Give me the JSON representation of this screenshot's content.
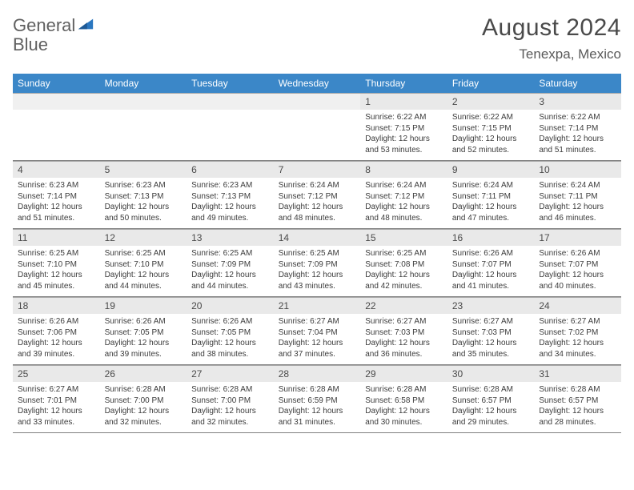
{
  "logo": {
    "text1": "General",
    "text2": "Blue"
  },
  "title": "August 2024",
  "subtitle": "Tenexpa, Mexico",
  "colors": {
    "header_bg": "#3b87c8",
    "header_text": "#ffffff",
    "daynum_bg": "#e9e9e9",
    "border": "#808080",
    "logo_blue": "#2b77c0"
  },
  "weekdays": [
    "Sunday",
    "Monday",
    "Tuesday",
    "Wednesday",
    "Thursday",
    "Friday",
    "Saturday"
  ],
  "weeks": [
    [
      null,
      null,
      null,
      null,
      {
        "n": "1",
        "sr": "6:22 AM",
        "ss": "7:15 PM",
        "dl": "12 hours and 53 minutes."
      },
      {
        "n": "2",
        "sr": "6:22 AM",
        "ss": "7:15 PM",
        "dl": "12 hours and 52 minutes."
      },
      {
        "n": "3",
        "sr": "6:22 AM",
        "ss": "7:14 PM",
        "dl": "12 hours and 51 minutes."
      }
    ],
    [
      {
        "n": "4",
        "sr": "6:23 AM",
        "ss": "7:14 PM",
        "dl": "12 hours and 51 minutes."
      },
      {
        "n": "5",
        "sr": "6:23 AM",
        "ss": "7:13 PM",
        "dl": "12 hours and 50 minutes."
      },
      {
        "n": "6",
        "sr": "6:23 AM",
        "ss": "7:13 PM",
        "dl": "12 hours and 49 minutes."
      },
      {
        "n": "7",
        "sr": "6:24 AM",
        "ss": "7:12 PM",
        "dl": "12 hours and 48 minutes."
      },
      {
        "n": "8",
        "sr": "6:24 AM",
        "ss": "7:12 PM",
        "dl": "12 hours and 48 minutes."
      },
      {
        "n": "9",
        "sr": "6:24 AM",
        "ss": "7:11 PM",
        "dl": "12 hours and 47 minutes."
      },
      {
        "n": "10",
        "sr": "6:24 AM",
        "ss": "7:11 PM",
        "dl": "12 hours and 46 minutes."
      }
    ],
    [
      {
        "n": "11",
        "sr": "6:25 AM",
        "ss": "7:10 PM",
        "dl": "12 hours and 45 minutes."
      },
      {
        "n": "12",
        "sr": "6:25 AM",
        "ss": "7:10 PM",
        "dl": "12 hours and 44 minutes."
      },
      {
        "n": "13",
        "sr": "6:25 AM",
        "ss": "7:09 PM",
        "dl": "12 hours and 44 minutes."
      },
      {
        "n": "14",
        "sr": "6:25 AM",
        "ss": "7:09 PM",
        "dl": "12 hours and 43 minutes."
      },
      {
        "n": "15",
        "sr": "6:25 AM",
        "ss": "7:08 PM",
        "dl": "12 hours and 42 minutes."
      },
      {
        "n": "16",
        "sr": "6:26 AM",
        "ss": "7:07 PM",
        "dl": "12 hours and 41 minutes."
      },
      {
        "n": "17",
        "sr": "6:26 AM",
        "ss": "7:07 PM",
        "dl": "12 hours and 40 minutes."
      }
    ],
    [
      {
        "n": "18",
        "sr": "6:26 AM",
        "ss": "7:06 PM",
        "dl": "12 hours and 39 minutes."
      },
      {
        "n": "19",
        "sr": "6:26 AM",
        "ss": "7:05 PM",
        "dl": "12 hours and 39 minutes."
      },
      {
        "n": "20",
        "sr": "6:26 AM",
        "ss": "7:05 PM",
        "dl": "12 hours and 38 minutes."
      },
      {
        "n": "21",
        "sr": "6:27 AM",
        "ss": "7:04 PM",
        "dl": "12 hours and 37 minutes."
      },
      {
        "n": "22",
        "sr": "6:27 AM",
        "ss": "7:03 PM",
        "dl": "12 hours and 36 minutes."
      },
      {
        "n": "23",
        "sr": "6:27 AM",
        "ss": "7:03 PM",
        "dl": "12 hours and 35 minutes."
      },
      {
        "n": "24",
        "sr": "6:27 AM",
        "ss": "7:02 PM",
        "dl": "12 hours and 34 minutes."
      }
    ],
    [
      {
        "n": "25",
        "sr": "6:27 AM",
        "ss": "7:01 PM",
        "dl": "12 hours and 33 minutes."
      },
      {
        "n": "26",
        "sr": "6:28 AM",
        "ss": "7:00 PM",
        "dl": "12 hours and 32 minutes."
      },
      {
        "n": "27",
        "sr": "6:28 AM",
        "ss": "7:00 PM",
        "dl": "12 hours and 32 minutes."
      },
      {
        "n": "28",
        "sr": "6:28 AM",
        "ss": "6:59 PM",
        "dl": "12 hours and 31 minutes."
      },
      {
        "n": "29",
        "sr": "6:28 AM",
        "ss": "6:58 PM",
        "dl": "12 hours and 30 minutes."
      },
      {
        "n": "30",
        "sr": "6:28 AM",
        "ss": "6:57 PM",
        "dl": "12 hours and 29 minutes."
      },
      {
        "n": "31",
        "sr": "6:28 AM",
        "ss": "6:57 PM",
        "dl": "12 hours and 28 minutes."
      }
    ]
  ],
  "labels": {
    "sunrise": "Sunrise:",
    "sunset": "Sunset:",
    "daylight": "Daylight:"
  }
}
